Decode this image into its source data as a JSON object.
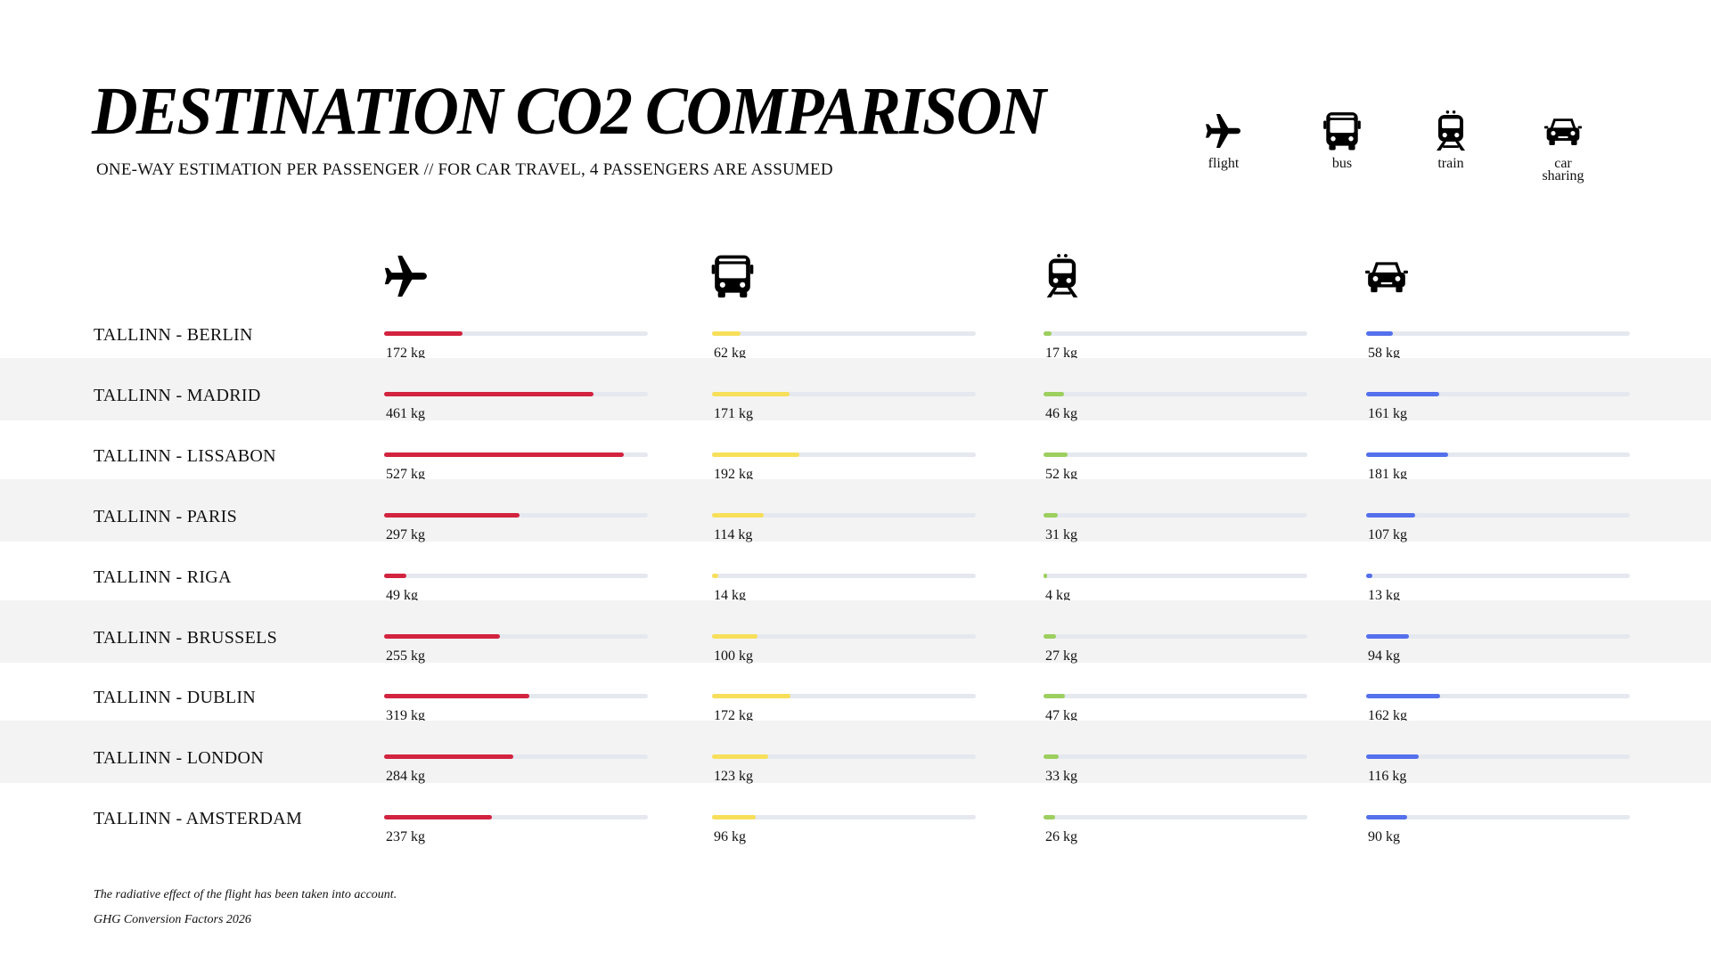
{
  "header": {
    "title": "DESTINATION CO2 COMPARISON",
    "subtitle": "ONE-WAY ESTIMATION PER PASSENGER // FOR CAR TRAVEL, 4 PASSENGERS ARE ASSUMED"
  },
  "legend": [
    {
      "icon": "plane-icon",
      "label_lines": [
        "flight"
      ]
    },
    {
      "icon": "bus-icon",
      "label_lines": [
        "bus"
      ]
    },
    {
      "icon": "train-icon",
      "label_lines": [
        "train"
      ]
    },
    {
      "icon": "car-icon",
      "label_lines": [
        "car",
        "sharing"
      ]
    }
  ],
  "chart_data": {
    "type": "bar",
    "orientation": "horizontal",
    "unit": "kg",
    "categories": [
      "TALLINN - BERLIN",
      "TALLINN - MADRID",
      "TALLINN - LISSABON",
      "TALLINN - PARIS",
      "TALLINN - RIGA",
      "TALLINN - BRUSSELS",
      "TALLINN - DUBLIN",
      "TALLINN - LONDON",
      "TALLINN - AMSTERDAM"
    ],
    "series": [
      {
        "name": "flight",
        "icon": "plane-icon",
        "color": "#d2233f",
        "values": [
          172,
          461,
          527,
          297,
          49,
          255,
          319,
          284,
          237
        ]
      },
      {
        "name": "bus",
        "icon": "bus-icon",
        "color": "#f7df5a",
        "values": [
          62,
          171,
          192,
          114,
          14,
          100,
          172,
          123,
          96
        ]
      },
      {
        "name": "train",
        "icon": "train-icon",
        "color": "#9ccf5e",
        "values": [
          17,
          46,
          52,
          31,
          4,
          27,
          47,
          33,
          26
        ]
      },
      {
        "name": "car sharing",
        "icon": "car-icon",
        "color": "#5470ec",
        "values": [
          58,
          161,
          181,
          107,
          13,
          94,
          162,
          116,
          90
        ]
      }
    ],
    "xlim": [
      0,
      580
    ],
    "track_color": "#e5e8ef",
    "band_color": "#f3f3f3"
  },
  "footnotes": [
    "The radiative effect of the flight has been taken into account.",
    "GHG Conversion Factors 2026"
  ]
}
